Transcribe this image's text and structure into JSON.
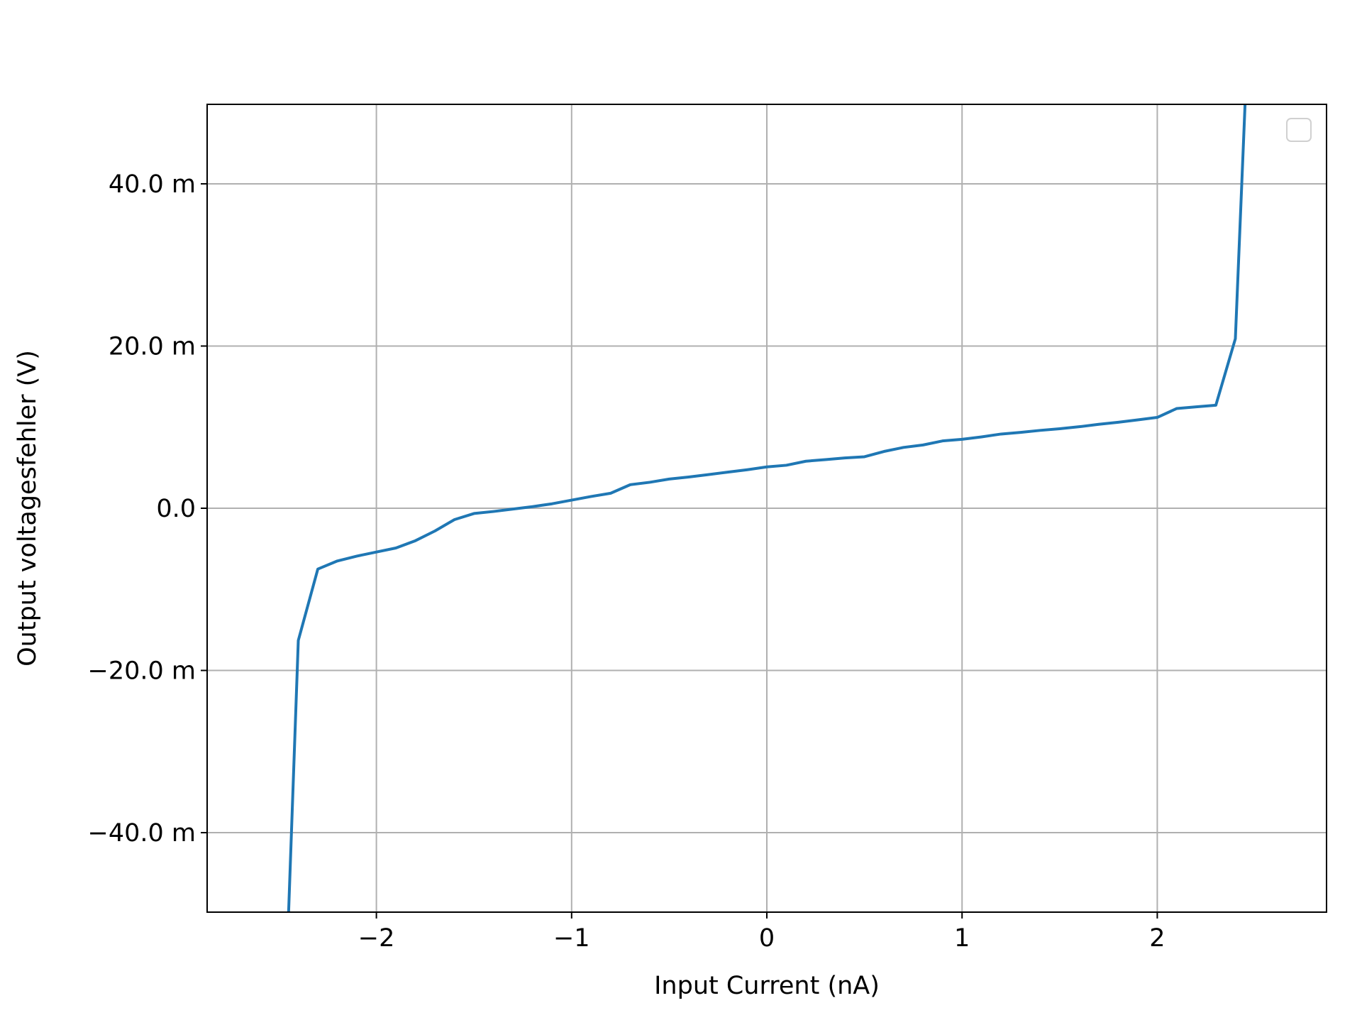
{
  "chart_data": {
    "type": "line",
    "xlabel": "Input Current (nA)",
    "ylabel": "Output voltagesfehler (V)",
    "x": [
      -2.45,
      -2.4,
      -2.3,
      -2.2,
      -2.1,
      -2.0,
      -1.9,
      -1.8,
      -1.7,
      -1.6,
      -1.5,
      -1.4,
      -1.3,
      -1.2,
      -1.1,
      -1.0,
      -0.9,
      -0.8,
      -0.7,
      -0.6,
      -0.5,
      -0.4,
      -0.3,
      -0.2,
      -0.1,
      0.0,
      0.1,
      0.2,
      0.3,
      0.4,
      0.5,
      0.6,
      0.7,
      0.8,
      0.9,
      1.0,
      1.1,
      1.2,
      1.3,
      1.4,
      1.5,
      1.6,
      1.7,
      1.8,
      1.9,
      2.0,
      2.1,
      2.2,
      2.3,
      2.4,
      2.45
    ],
    "series": [
      {
        "color": "#1f77b4",
        "values": [
          -0.05,
          -0.0163,
          -0.0075,
          -0.0065,
          -0.0059,
          -0.0054,
          -0.0049,
          -0.004,
          -0.0028,
          -0.0014,
          -0.00065,
          -0.0004,
          -0.0001,
          0.0002,
          0.00055,
          0.001,
          0.00145,
          0.00185,
          0.0029,
          0.0032,
          0.0036,
          0.00385,
          0.00415,
          0.00445,
          0.00475,
          0.0051,
          0.0053,
          0.0058,
          0.006,
          0.0062,
          0.00635,
          0.007,
          0.0075,
          0.0078,
          0.0083,
          0.0085,
          0.0088,
          0.00915,
          0.00935,
          0.0096,
          0.0098,
          0.01005,
          0.01035,
          0.0106,
          0.0109,
          0.0112,
          0.0123,
          0.0125,
          0.0127,
          0.0209,
          0.05
        ]
      }
    ],
    "xlim": [
      -2.867,
      2.867
    ],
    "ylim": [
      -0.0498,
      0.0498
    ],
    "xticks": [
      {
        "value": -2,
        "label": "−2"
      },
      {
        "value": -1,
        "label": "−1"
      },
      0,
      1,
      2
    ],
    "yticks": [
      {
        "value": -0.04,
        "label": "−40.0 m"
      },
      {
        "value": -0.02,
        "label": "−20.0 m"
      },
      {
        "value": 0,
        "label": "0.0"
      },
      {
        "value": 0.02,
        "label": "20.0 m"
      },
      {
        "value": 0.04,
        "label": "40.0 m"
      }
    ],
    "grid": true,
    "legend": "upper right"
  }
}
